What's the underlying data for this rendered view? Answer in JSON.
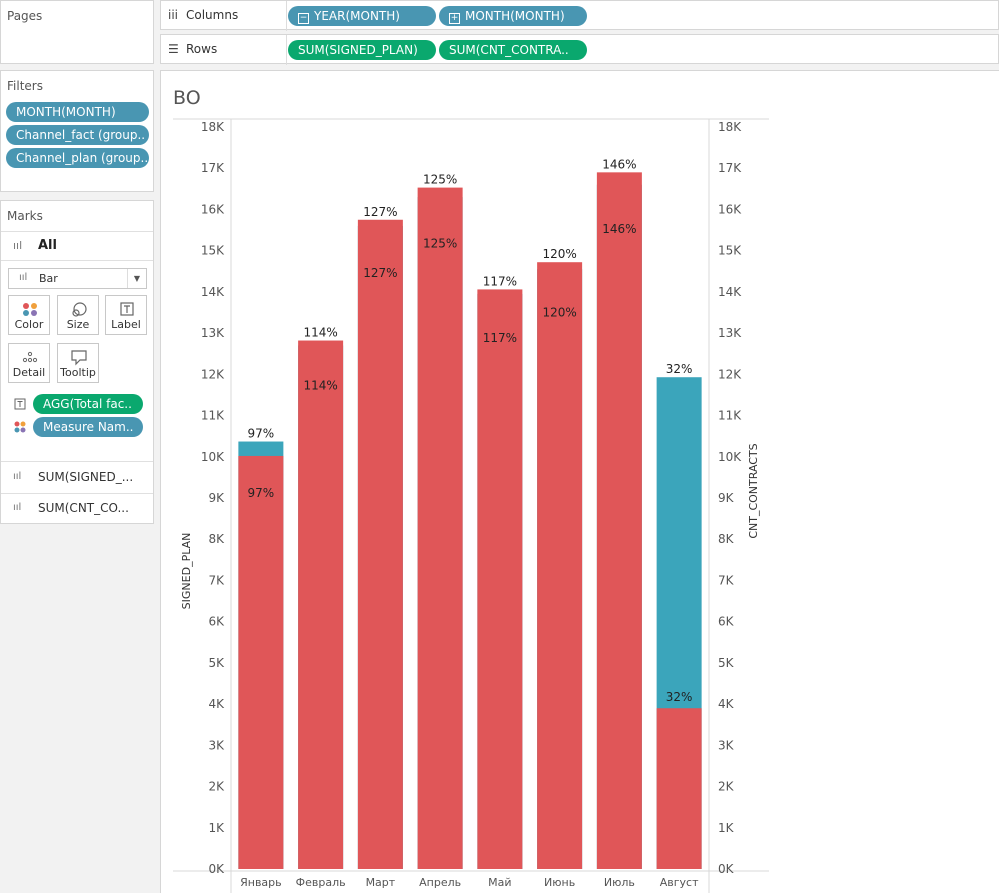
{
  "pages": {
    "title": "Pages"
  },
  "columns_shelf": {
    "label": "Columns",
    "pills": [
      {
        "text": "YEAR(MONTH)",
        "prefix": "−"
      },
      {
        "text": "MONTH(MONTH)",
        "prefix": "+"
      }
    ]
  },
  "rows_shelf": {
    "label": "Rows",
    "pills": [
      {
        "text": "SUM(SIGNED_PLAN)"
      },
      {
        "text": "SUM(CNT_CONTRA.."
      }
    ]
  },
  "filters": {
    "title": "Filters",
    "items": [
      "MONTH(MONTH)",
      "Channel_fact (group..",
      "Channel_plan (group.."
    ]
  },
  "marks": {
    "title": "Marks",
    "all_label": "All",
    "mark_type": "Bar",
    "buttons": {
      "color": "Color",
      "size": "Size",
      "label": "Label",
      "detail": "Detail",
      "tooltip": "Tooltip"
    },
    "fields": [
      {
        "text": "AGG(Total fac..",
        "icon": "text-icon"
      },
      {
        "text": "Measure Nam..",
        "icon": "color-dots-icon"
      }
    ],
    "measures": [
      "SUM(SIGNED_...",
      "SUM(CNT_CO..."
    ]
  },
  "colors": {
    "plan_bar": "#e05658",
    "contracts_bar": "#3ba5bb",
    "blue_pill": "#4996b2",
    "green_pill": "#0aa86e"
  },
  "chart_data": {
    "type": "bar",
    "title": "BO",
    "ylabel_left": "SIGNED_PLAN",
    "ylabel_right": "CNT_CONTRACTS",
    "categories": [
      "Январь",
      "Февраль",
      "Март",
      "Апрель",
      "Май",
      "Июнь",
      "Июль",
      "Август"
    ],
    "ylim": [
      0,
      18000
    ],
    "yticks": [
      "0K",
      "1K",
      "2K",
      "3K",
      "4K",
      "5K",
      "6K",
      "7K",
      "8K",
      "9K",
      "10K",
      "11K",
      "12K",
      "13K",
      "14K",
      "15K",
      "16K",
      "17K",
      "18K"
    ],
    "series": [
      {
        "name": "SIGNED_PLAN",
        "color": "#e05658",
        "values": [
          10020,
          12820,
          15750,
          16530,
          14060,
          14720,
          16900,
          3900
        ]
      },
      {
        "name": "CNT_CONTRACTS",
        "color": "#3ba5bb",
        "values": [
          10370,
          12700,
          15600,
          16300,
          13950,
          14550,
          16600,
          11930
        ]
      }
    ],
    "labels_top": [
      "97%",
      "114%",
      "127%",
      "125%",
      "117%",
      "120%",
      "146%",
      "32%"
    ],
    "labels_inner": [
      "97%",
      "114%",
      "127%",
      "125%",
      "117%",
      "120%",
      "146%",
      "32%"
    ],
    "grid": false
  }
}
